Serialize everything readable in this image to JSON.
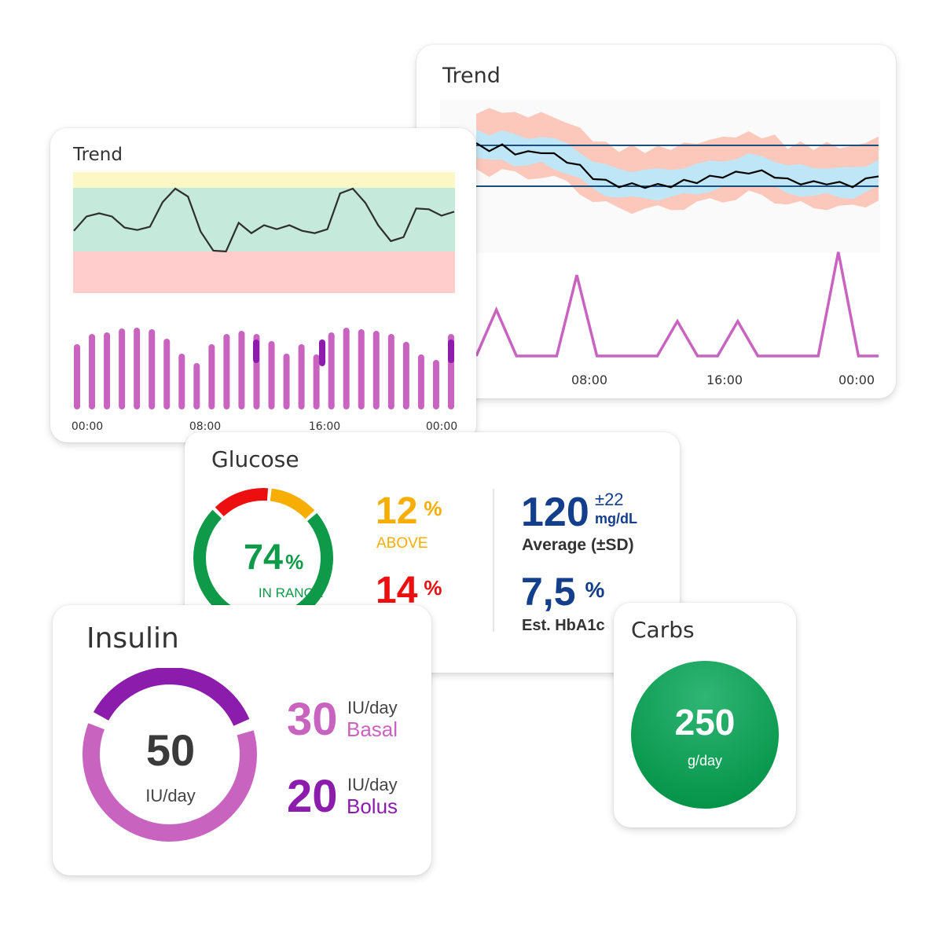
{
  "trend_large": {
    "title": "Trend",
    "x_ticks": [
      "08:00",
      "16:00",
      "00:00"
    ],
    "colors": {
      "band_outer": "#fcc8bb",
      "band_inner": "#bfe6f6",
      "limit_lines": "#1c4f7c",
      "line": "#000000",
      "spikes": "#c963c0"
    },
    "chart_data": {
      "type": "line",
      "x_ticks": [
        "08:00",
        "16:00",
        "00:00"
      ],
      "series": [
        {
          "values": [
            170,
            165,
            168,
            160,
            158,
            162,
            155,
            148,
            138,
            124,
            116,
            112,
            111,
            111,
            110,
            112,
            116,
            118,
            122,
            126,
            128,
            132,
            130,
            126,
            118,
            116,
            114,
            116,
            113,
            112,
            118,
            128
          ]
        },
        {
          "values": [
            0,
            4,
            0,
            0,
            0,
            7,
            0,
            0,
            0,
            0,
            3,
            0,
            0,
            3,
            0,
            0,
            0,
            0,
            9,
            0,
            0
          ]
        }
      ]
    }
  },
  "trend_small": {
    "title": "Trend",
    "x_ticks": [
      "00:00",
      "08:00",
      "16:00",
      "00:00"
    ],
    "colors": {
      "zone_high": "#fdf7c6",
      "zone_target": "#c5eadc",
      "zone_low": "#ffcdcb",
      "line": "#2e2e2e",
      "bars": "#c963c0",
      "bolus": "#8c1cac"
    },
    "chart_data": {
      "type": "line",
      "x_ticks": [
        "00:00",
        "08:00",
        "16:00",
        "00:00"
      ],
      "series": [
        {
          "values": [
            96,
            114,
            118,
            114,
            100,
            97,
            101,
            132,
            149,
            139,
            95,
            71,
            70,
            106,
            93,
            103,
            98,
            103,
            96,
            93,
            98,
            143,
            149,
            131,
            103,
            83,
            88,
            124,
            123,
            115,
            120
          ]
        },
        {
          "values": [
            75,
            88,
            90,
            95,
            96,
            94,
            82,
            63,
            51,
            75,
            88,
            92,
            88,
            79,
            63,
            75,
            62,
            90,
            96,
            94,
            92,
            88,
            78,
            62,
            55,
            88
          ]
        },
        {
          "values": [
            0,
            0,
            0,
            0,
            0,
            0,
            0,
            0,
            0,
            0,
            0,
            0,
            22,
            0,
            0,
            0,
            0,
            0,
            0,
            26,
            0,
            0,
            0,
            0,
            0,
            0,
            0,
            0,
            0,
            0,
            22
          ]
        }
      ]
    }
  },
  "glucose": {
    "title": "Glucose",
    "in_range": {
      "value": "74",
      "unit": "%",
      "label": "IN RANGE",
      "fraction": 0.74
    },
    "above": {
      "value": "12",
      "unit": "%",
      "label": "ABOVE",
      "fraction": 0.12
    },
    "below": {
      "value": "14",
      "unit": "%",
      "fraction": 0.14
    },
    "average": {
      "value": "120",
      "sd": "±22",
      "unit": "mg/dL",
      "label": "Average (±SD)"
    },
    "hba1c": {
      "value": "7,5",
      "unit": "%",
      "label": "Est. HbA1c"
    },
    "colors": {
      "in_range": "#0e9a48",
      "above": "#f8ae00",
      "below": "#ed0f10",
      "stats": "#133e8c"
    }
  },
  "insulin": {
    "title": "Insulin",
    "total": {
      "value": "50",
      "unit": "IU/day"
    },
    "basal": {
      "value": "30",
      "unit": "IU/day",
      "label": "Basal",
      "fraction": 0.6
    },
    "bolus": {
      "value": "20",
      "unit": "IU/day",
      "label": "Bolus",
      "fraction": 0.4
    },
    "colors": {
      "basal": "#c963c0",
      "bolus": "#8c1cac"
    }
  },
  "carbs": {
    "title": "Carbs",
    "value": "250",
    "unit": "g/day",
    "colors": {
      "circle": "#049448"
    }
  }
}
